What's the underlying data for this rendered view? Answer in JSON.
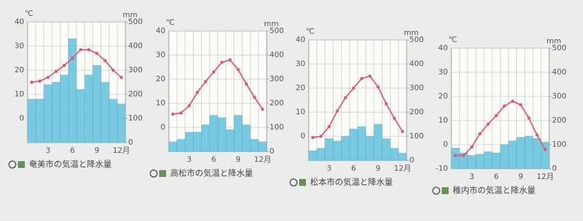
{
  "chart_data": [
    {
      "type": "combo",
      "title": "奄美市の気温と降水量",
      "y_label": "℃",
      "y2_label": "mm",
      "categories": [
        null,
        null,
        "3",
        null,
        null,
        "6",
        null,
        null,
        "9",
        null,
        null,
        "12月"
      ],
      "ylim": [
        -10,
        40
      ],
      "yticks": [
        0,
        10,
        20,
        30,
        40
      ],
      "y2lim": [
        0,
        500
      ],
      "y2ticks": [
        0,
        100,
        200,
        300,
        400,
        500
      ],
      "grid": true,
      "series": [
        {
          "kind": "bar",
          "axis": "y2",
          "color": "#6cc4de",
          "values": [
            180,
            180,
            240,
            250,
            280,
            430,
            220,
            280,
            320,
            250,
            180,
            160
          ]
        },
        {
          "kind": "line",
          "color": "#e0557a",
          "values": [
            15,
            15.5,
            17,
            19.5,
            22,
            25,
            28.5,
            28.5,
            27,
            24,
            20,
            17
          ]
        }
      ]
    },
    {
      "type": "combo",
      "title": "高松市の気温と降水量",
      "y_label": "℃",
      "y2_label": "mm",
      "categories": [
        null,
        null,
        "3",
        null,
        null,
        "6",
        null,
        null,
        "9",
        null,
        null,
        "12月"
      ],
      "ylim": [
        -10,
        40
      ],
      "yticks": [
        0,
        10,
        20,
        30,
        40
      ],
      "y2lim": [
        0,
        500
      ],
      "y2ticks": [
        0,
        100,
        200,
        300,
        400,
        500
      ],
      "grid": true,
      "series": [
        {
          "kind": "bar",
          "axis": "y2",
          "color": "#6cc4de",
          "values": [
            40,
            50,
            80,
            80,
            110,
            150,
            140,
            90,
            150,
            110,
            50,
            40
          ]
        },
        {
          "kind": "line",
          "color": "#e0557a",
          "values": [
            5.5,
            6,
            9,
            14.5,
            19,
            23,
            27,
            28,
            24,
            18,
            12.5,
            7.5
          ]
        }
      ]
    },
    {
      "type": "combo",
      "title": "松本市の気温と降水量",
      "y_label": "℃",
      "y2_label": "mm",
      "categories": [
        null,
        null,
        "3",
        null,
        null,
        "6",
        null,
        null,
        "9",
        null,
        null,
        "12月"
      ],
      "ylim": [
        -10,
        40
      ],
      "yticks": [
        0,
        10,
        20,
        30,
        40
      ],
      "y2lim": [
        0,
        500
      ],
      "y2ticks": [
        0,
        100,
        200,
        300,
        400,
        500
      ],
      "grid": true,
      "series": [
        {
          "kind": "bar",
          "axis": "y2",
          "color": "#6cc4de",
          "values": [
            40,
            50,
            90,
            80,
            100,
            130,
            140,
            100,
            150,
            90,
            50,
            30
          ]
        },
        {
          "kind": "line",
          "color": "#e0557a",
          "values": [
            -0.5,
            0,
            4,
            10.5,
            16,
            20,
            24,
            25,
            20.5,
            13.5,
            7.5,
            2
          ]
        }
      ]
    },
    {
      "type": "combo",
      "title": "稚内市の気温と降水量",
      "y_label": "℃",
      "y2_label": "mm",
      "categories": [
        null,
        null,
        "3",
        null,
        null,
        "6",
        null,
        null,
        "9",
        null,
        null,
        "12月"
      ],
      "ylim": [
        -10,
        40
      ],
      "yticks": [
        -10,
        0,
        10,
        20,
        30,
        40
      ],
      "y2lim": [
        0,
        500
      ],
      "y2ticks": [
        0,
        100,
        200,
        300,
        400,
        500
      ],
      "grid": true,
      "series": [
        {
          "kind": "bar",
          "axis": "y2",
          "color": "#6cc4de",
          "values": [
            85,
            65,
            55,
            60,
            70,
            65,
            100,
            115,
            130,
            135,
            125,
            110
          ]
        },
        {
          "kind": "line",
          "color": "#e0557a",
          "values": [
            -4.5,
            -4.5,
            -1,
            4.5,
            8.5,
            12,
            16,
            18,
            16.5,
            11,
            4,
            -2
          ]
        }
      ]
    }
  ]
}
